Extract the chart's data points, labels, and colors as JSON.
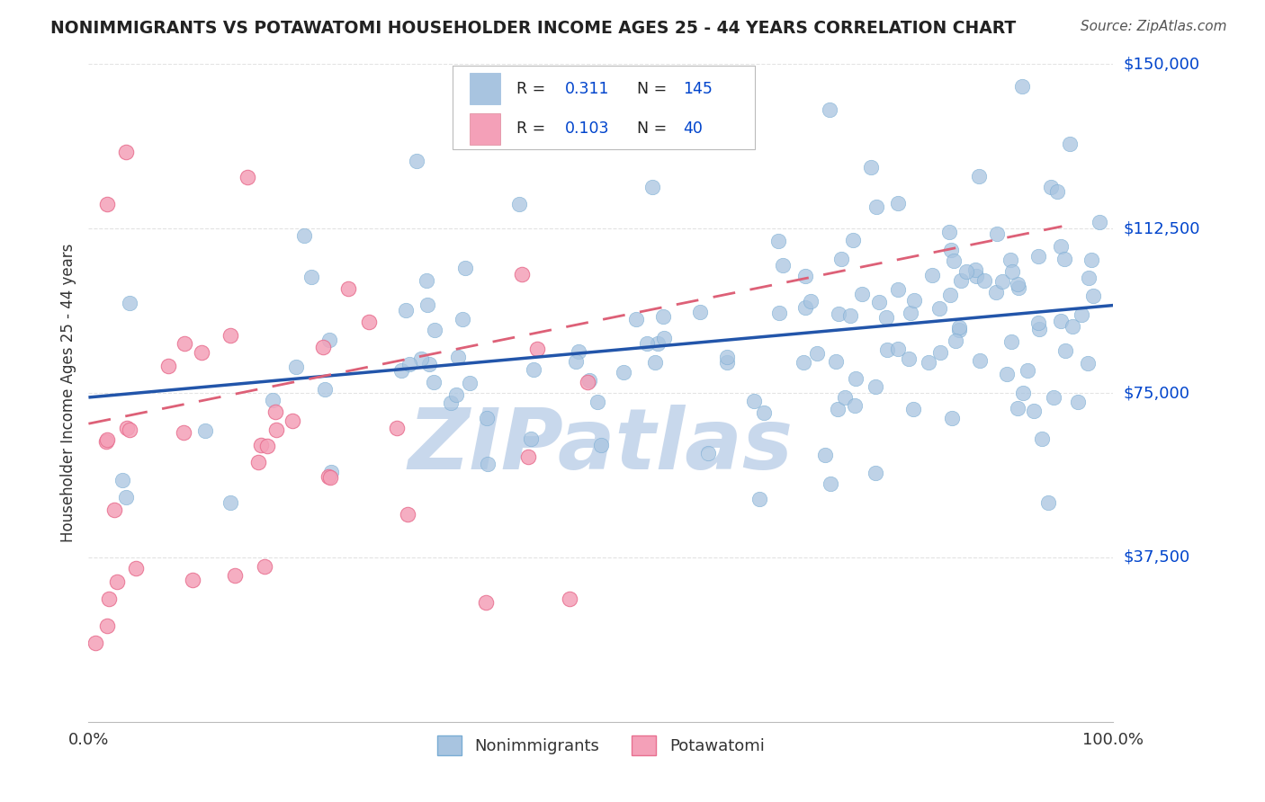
{
  "title": "NONIMMIGRANTS VS POTAWATOMI HOUSEHOLDER INCOME AGES 25 - 44 YEARS CORRELATION CHART",
  "source": "Source: ZipAtlas.com",
  "ylabel": "Householder Income Ages 25 - 44 years",
  "xlim": [
    0,
    1
  ],
  "ylim": [
    0,
    150000
  ],
  "nonimm_color": "#a8c4e0",
  "nonimm_edge_color": "#7aadd4",
  "potawatomi_color": "#f4a0b8",
  "potawatomi_edge_color": "#e87090",
  "nonimm_line_color": "#2255aa",
  "potawatomi_line_color": "#dd6077",
  "watermark_color": "#c8d8ec",
  "background_color": "#ffffff",
  "grid_color": "#dddddd",
  "ytick_vals": [
    37500,
    75000,
    112500,
    150000
  ],
  "ytick_labels": [
    "$37,500",
    "$75,000",
    "$112,500",
    "$150,000"
  ],
  "blue_line_x0": 0.0,
  "blue_line_y0": 74000,
  "blue_line_x1": 1.0,
  "blue_line_y1": 95000,
  "pink_line_x0": 0.0,
  "pink_line_y0": 68000,
  "pink_line_x1": 0.95,
  "pink_line_y1": 113000
}
